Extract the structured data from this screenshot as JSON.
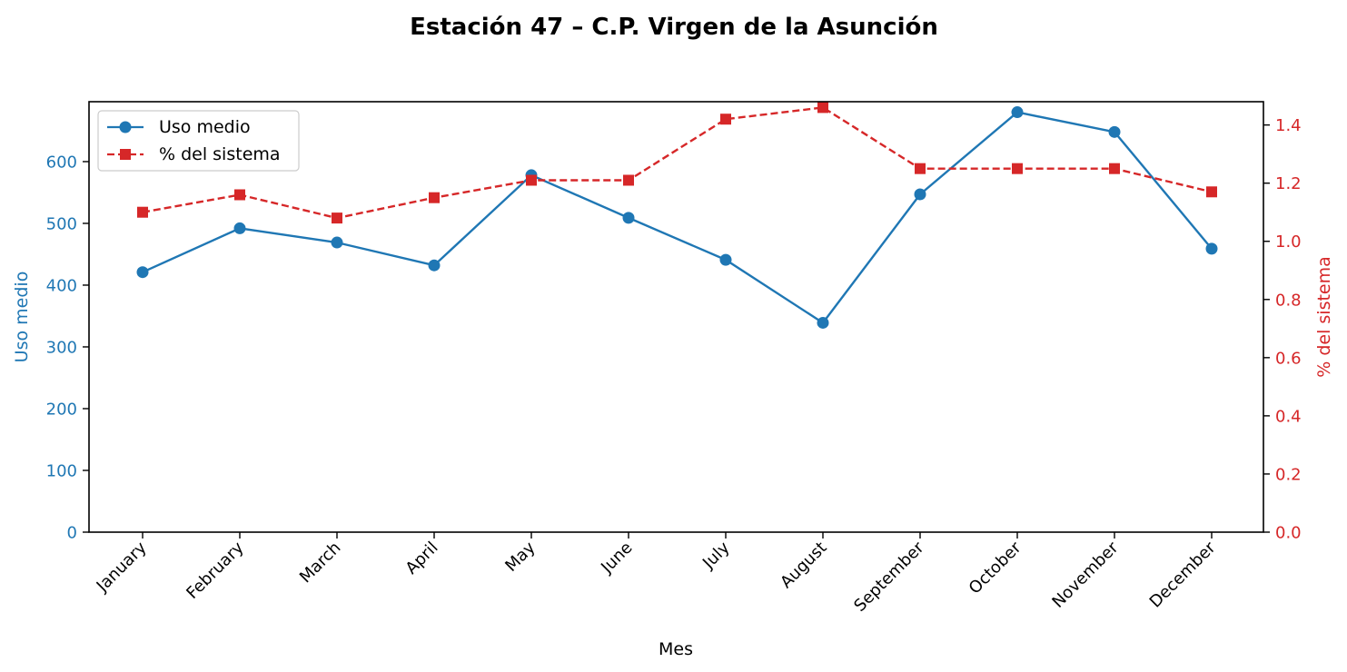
{
  "chart_data": {
    "type": "line",
    "title": "Estación 47 – C.P. Virgen de la Asunción",
    "xlabel": "Mes",
    "ylabel_left": "Uso medio",
    "ylabel_right": "% del sistema",
    "categories": [
      "January",
      "February",
      "March",
      "April",
      "May",
      "June",
      "July",
      "August",
      "September",
      "October",
      "November",
      "December"
    ],
    "ylim_left": [
      0,
      697
    ],
    "yticks_left": [
      0,
      100,
      200,
      300,
      400,
      500,
      600
    ],
    "ylim_right": [
      0,
      1.48
    ],
    "yticks_right": [
      "0.0",
      "0.2",
      "0.4",
      "0.6",
      "0.8",
      "1.0",
      "1.2",
      "1.4"
    ],
    "grid": false,
    "legend_position": "upper left",
    "series": [
      {
        "name": "Uso medio",
        "axis": "left",
        "color": "#1f77b4",
        "marker": "circle",
        "line_style": "solid",
        "values": [
          421,
          492,
          469,
          432,
          578,
          509,
          441,
          339,
          547,
          680,
          648,
          459
        ]
      },
      {
        "name": "% del sistema",
        "axis": "right",
        "color": "#d62728",
        "marker": "square",
        "line_style": "dashed",
        "values": [
          1.1,
          1.16,
          1.08,
          1.15,
          1.21,
          1.21,
          1.42,
          1.46,
          1.25,
          1.25,
          1.25,
          1.17
        ]
      }
    ]
  }
}
